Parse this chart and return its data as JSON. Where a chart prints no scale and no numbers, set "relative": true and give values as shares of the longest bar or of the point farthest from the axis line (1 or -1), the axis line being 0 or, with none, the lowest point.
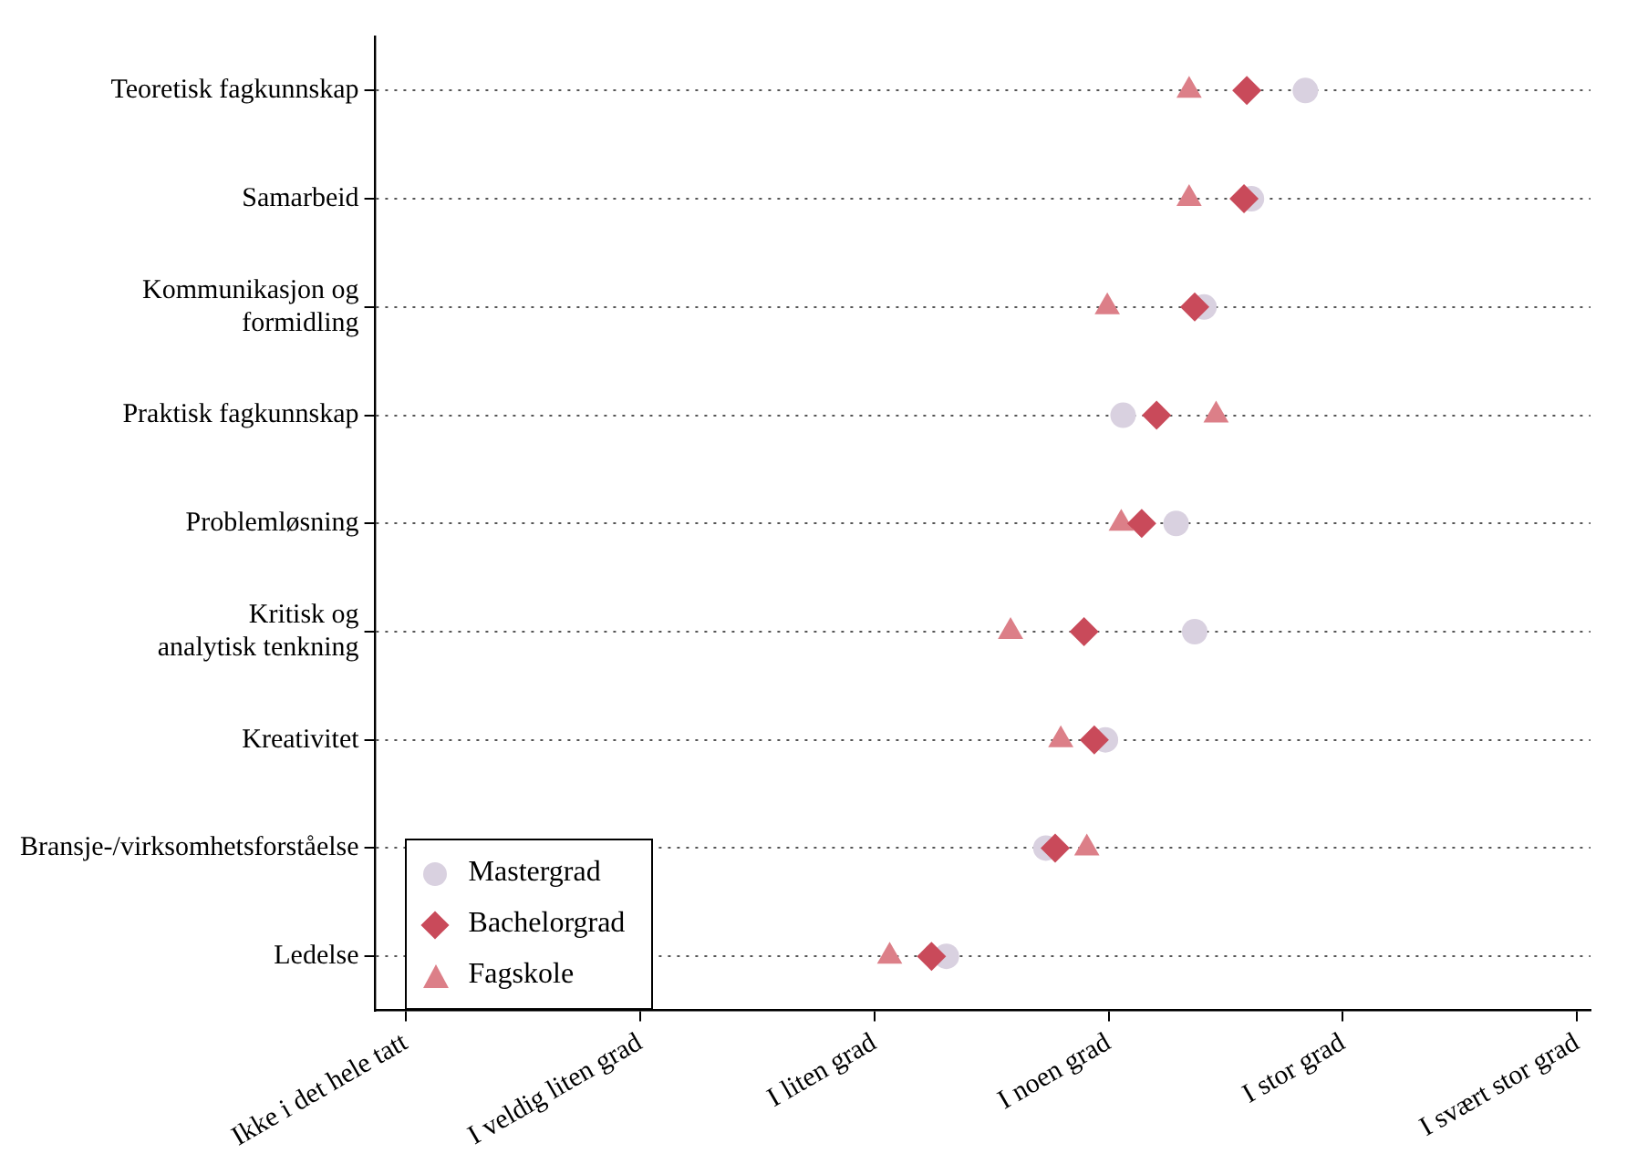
{
  "chart_data": {
    "type": "scatter",
    "orientation": "horizontal",
    "relative": true,
    "categories": [
      "Teoretisk fagkunnskap",
      "Samarbeid",
      "Kommunikasjon og\nformidling",
      "Praktisk fagkunnskap",
      "Problemløsning",
      "Kritisk og\nanalytisk tenkning",
      "Kreativitet",
      "Bransje-/virksomhetsforståelse",
      "Ledelse"
    ],
    "annotations": [
      "Ikke i det hele tatt",
      "I veldig liten grad",
      "I liten grad",
      "I noen grad",
      "I stor grad",
      "I svært stor grad"
    ],
    "series": [
      {
        "name": "Mastergrad",
        "color": "#d9d1e0",
        "marker": "circle",
        "values": [
          1,
          0.942,
          0.891,
          0.804,
          0.861,
          0.881,
          0.785,
          0.721,
          0.614
        ]
      },
      {
        "name": "Bachelorgrad",
        "color": "#c94a5a",
        "marker": "diamond",
        "values": [
          0.937,
          0.934,
          0.881,
          0.84,
          0.824,
          0.762,
          0.773,
          0.731,
          0.598
        ]
      },
      {
        "name": "Fagskole",
        "color": "#dc7f88",
        "marker": "triangle",
        "values": [
          0.875,
          0.875,
          0.787,
          0.904,
          0.802,
          0.683,
          0.737,
          0.765,
          0.553
        ]
      }
    ],
    "grid": "y",
    "line_style": "dotted",
    "legend": "bottom left"
  }
}
